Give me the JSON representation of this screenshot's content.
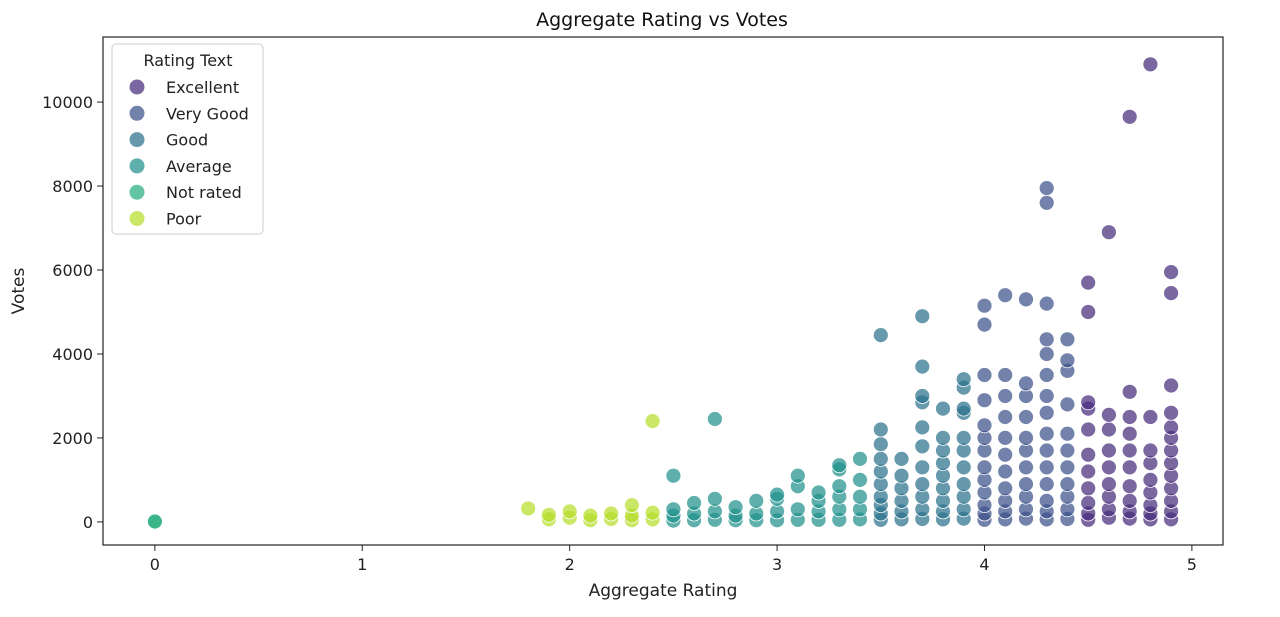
{
  "chart_data": {
    "type": "scatter",
    "title": "Aggregate Rating vs Votes",
    "xlabel": "Aggregate Rating",
    "ylabel": "Votes",
    "xlim": [
      -0.25,
      5.15
    ],
    "ylim": [
      -550,
      11550
    ],
    "xticks": [
      0,
      1,
      2,
      3,
      4,
      5
    ],
    "yticks": [
      0,
      2000,
      4000,
      6000,
      8000,
      10000
    ],
    "grid": false,
    "legend": {
      "title": "Rating Text",
      "placement": "top-left"
    },
    "series": [
      {
        "name": "Excellent",
        "color": "#472d7b",
        "points": [
          [
            4.5,
            50
          ],
          [
            4.5,
            200
          ],
          [
            4.5,
            450
          ],
          [
            4.5,
            800
          ],
          [
            4.5,
            1200
          ],
          [
            4.5,
            1600
          ],
          [
            4.5,
            2200
          ],
          [
            4.5,
            2700
          ],
          [
            4.5,
            2850
          ],
          [
            4.5,
            5000
          ],
          [
            4.5,
            5700
          ],
          [
            4.6,
            100
          ],
          [
            4.6,
            300
          ],
          [
            4.6,
            600
          ],
          [
            4.6,
            900
          ],
          [
            4.6,
            1300
          ],
          [
            4.6,
            1700
          ],
          [
            4.6,
            2200
          ],
          [
            4.6,
            2550
          ],
          [
            4.6,
            6900
          ],
          [
            4.7,
            80
          ],
          [
            4.7,
            250
          ],
          [
            4.7,
            500
          ],
          [
            4.7,
            850
          ],
          [
            4.7,
            1300
          ],
          [
            4.7,
            1700
          ],
          [
            4.7,
            2100
          ],
          [
            4.7,
            2500
          ],
          [
            4.7,
            3100
          ],
          [
            4.7,
            9650
          ],
          [
            4.8,
            60
          ],
          [
            4.8,
            200
          ],
          [
            4.8,
            400
          ],
          [
            4.8,
            700
          ],
          [
            4.8,
            1000
          ],
          [
            4.8,
            1400
          ],
          [
            4.8,
            1700
          ],
          [
            4.8,
            2500
          ],
          [
            4.8,
            10900
          ],
          [
            4.9,
            60
          ],
          [
            4.9,
            250
          ],
          [
            4.9,
            500
          ],
          [
            4.9,
            800
          ],
          [
            4.9,
            1100
          ],
          [
            4.9,
            1400
          ],
          [
            4.9,
            1700
          ],
          [
            4.9,
            2000
          ],
          [
            4.9,
            2250
          ],
          [
            4.9,
            2600
          ],
          [
            4.9,
            3250
          ],
          [
            4.9,
            5450
          ],
          [
            4.9,
            5950
          ]
        ]
      },
      {
        "name": "Very Good",
        "color": "#3b528b",
        "points": [
          [
            4.0,
            50
          ],
          [
            4.0,
            200
          ],
          [
            4.0,
            400
          ],
          [
            4.0,
            700
          ],
          [
            4.0,
            1000
          ],
          [
            4.0,
            1300
          ],
          [
            4.0,
            1700
          ],
          [
            4.0,
            2000
          ],
          [
            4.0,
            2300
          ],
          [
            4.0,
            2900
          ],
          [
            4.0,
            3500
          ],
          [
            4.0,
            4700
          ],
          [
            4.0,
            5150
          ],
          [
            4.1,
            60
          ],
          [
            4.1,
            250
          ],
          [
            4.1,
            500
          ],
          [
            4.1,
            800
          ],
          [
            4.1,
            1200
          ],
          [
            4.1,
            1600
          ],
          [
            4.1,
            2000
          ],
          [
            4.1,
            2500
          ],
          [
            4.1,
            3000
          ],
          [
            4.1,
            3500
          ],
          [
            4.1,
            5400
          ],
          [
            4.2,
            80
          ],
          [
            4.2,
            300
          ],
          [
            4.2,
            600
          ],
          [
            4.2,
            900
          ],
          [
            4.2,
            1300
          ],
          [
            4.2,
            1700
          ],
          [
            4.2,
            2000
          ],
          [
            4.2,
            2500
          ],
          [
            4.2,
            3000
          ],
          [
            4.2,
            3300
          ],
          [
            4.2,
            5300
          ],
          [
            4.3,
            60
          ],
          [
            4.3,
            250
          ],
          [
            4.3,
            500
          ],
          [
            4.3,
            900
          ],
          [
            4.3,
            1300
          ],
          [
            4.3,
            1700
          ],
          [
            4.3,
            2100
          ],
          [
            4.3,
            2600
          ],
          [
            4.3,
            3000
          ],
          [
            4.3,
            3500
          ],
          [
            4.3,
            4000
          ],
          [
            4.3,
            4350
          ],
          [
            4.3,
            5200
          ],
          [
            4.3,
            7600
          ],
          [
            4.3,
            7950
          ],
          [
            4.4,
            70
          ],
          [
            4.4,
            300
          ],
          [
            4.4,
            600
          ],
          [
            4.4,
            900
          ],
          [
            4.4,
            1300
          ],
          [
            4.4,
            1700
          ],
          [
            4.4,
            2100
          ],
          [
            4.4,
            2800
          ],
          [
            4.4,
            3600
          ],
          [
            4.4,
            3850
          ],
          [
            4.4,
            4350
          ]
        ]
      },
      {
        "name": "Good",
        "color": "#2c728e",
        "points": [
          [
            3.5,
            50
          ],
          [
            3.5,
            200
          ],
          [
            3.5,
            400
          ],
          [
            3.5,
            600
          ],
          [
            3.5,
            900
          ],
          [
            3.5,
            1200
          ],
          [
            3.5,
            1500
          ],
          [
            3.5,
            1850
          ],
          [
            3.5,
            2200
          ],
          [
            3.5,
            4450
          ],
          [
            3.6,
            60
          ],
          [
            3.6,
            250
          ],
          [
            3.6,
            500
          ],
          [
            3.6,
            800
          ],
          [
            3.6,
            1100
          ],
          [
            3.6,
            1500
          ],
          [
            3.7,
            70
          ],
          [
            3.7,
            300
          ],
          [
            3.7,
            600
          ],
          [
            3.7,
            900
          ],
          [
            3.7,
            1300
          ],
          [
            3.7,
            1800
          ],
          [
            3.7,
            2250
          ],
          [
            3.7,
            2850
          ],
          [
            3.7,
            3000
          ],
          [
            3.7,
            3700
          ],
          [
            3.7,
            4900
          ],
          [
            3.8,
            60
          ],
          [
            3.8,
            250
          ],
          [
            3.8,
            500
          ],
          [
            3.8,
            800
          ],
          [
            3.8,
            1100
          ],
          [
            3.8,
            1400
          ],
          [
            3.8,
            1700
          ],
          [
            3.8,
            2000
          ],
          [
            3.8,
            2700
          ],
          [
            3.9,
            80
          ],
          [
            3.9,
            300
          ],
          [
            3.9,
            600
          ],
          [
            3.9,
            900
          ],
          [
            3.9,
            1300
          ],
          [
            3.9,
            1700
          ],
          [
            3.9,
            2000
          ],
          [
            3.9,
            2600
          ],
          [
            3.9,
            2700
          ],
          [
            3.9,
            3200
          ],
          [
            3.9,
            3400
          ]
        ]
      },
      {
        "name": "Average",
        "color": "#21918c",
        "points": [
          [
            2.5,
            30
          ],
          [
            2.5,
            150
          ],
          [
            2.5,
            300
          ],
          [
            2.5,
            1100
          ],
          [
            2.6,
            40
          ],
          [
            2.6,
            200
          ],
          [
            2.6,
            450
          ],
          [
            2.7,
            50
          ],
          [
            2.7,
            250
          ],
          [
            2.7,
            550
          ],
          [
            2.7,
            2450
          ],
          [
            2.8,
            40
          ],
          [
            2.8,
            150
          ],
          [
            2.8,
            350
          ],
          [
            2.9,
            40
          ],
          [
            2.9,
            200
          ],
          [
            2.9,
            500
          ],
          [
            3.0,
            40
          ],
          [
            3.0,
            250
          ],
          [
            3.0,
            550
          ],
          [
            3.0,
            650
          ],
          [
            3.1,
            50
          ],
          [
            3.1,
            300
          ],
          [
            3.1,
            850
          ],
          [
            3.1,
            1100
          ],
          [
            3.2,
            50
          ],
          [
            3.2,
            250
          ],
          [
            3.2,
            500
          ],
          [
            3.2,
            700
          ],
          [
            3.3,
            50
          ],
          [
            3.3,
            300
          ],
          [
            3.3,
            600
          ],
          [
            3.3,
            850
          ],
          [
            3.3,
            1250
          ],
          [
            3.3,
            1350
          ],
          [
            3.4,
            60
          ],
          [
            3.4,
            300
          ],
          [
            3.4,
            600
          ],
          [
            3.4,
            1000
          ],
          [
            3.4,
            1500
          ]
        ]
      },
      {
        "name": "Not rated",
        "color": "#28ae80",
        "points": [
          [
            0.0,
            0
          ],
          [
            0.0,
            10
          ]
        ]
      },
      {
        "name": "Poor",
        "color": "#b5de2b",
        "points": [
          [
            1.8,
            320
          ],
          [
            1.9,
            60
          ],
          [
            1.9,
            170
          ],
          [
            2.0,
            100
          ],
          [
            2.0,
            250
          ],
          [
            2.1,
            40
          ],
          [
            2.1,
            150
          ],
          [
            2.2,
            70
          ],
          [
            2.2,
            200
          ],
          [
            2.3,
            40
          ],
          [
            2.3,
            150
          ],
          [
            2.3,
            400
          ],
          [
            2.4,
            60
          ],
          [
            2.4,
            220
          ],
          [
            2.4,
            2400
          ]
        ]
      }
    ]
  }
}
